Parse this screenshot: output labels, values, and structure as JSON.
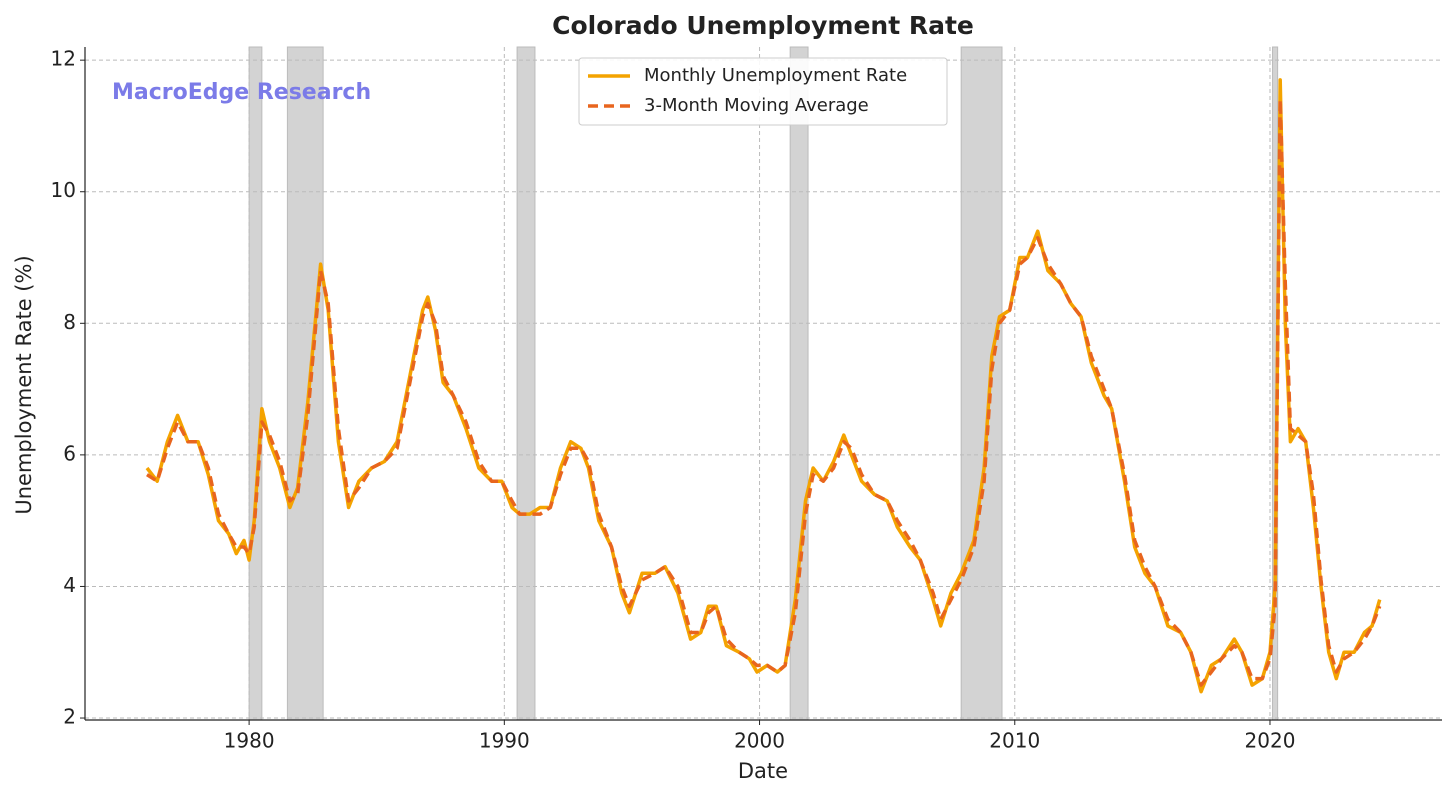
{
  "chart_data": {
    "type": "line",
    "title": "Colorado Unemployment Rate",
    "x_label": "Date",
    "y_label": "Unemployment Rate (%)",
    "annotation": "MacroEdge Research",
    "xlim": [
      1973.57,
      2026.74
    ],
    "ylim": [
      1.97,
      12.2
    ],
    "xticks": [
      1980,
      1990,
      2000,
      2010,
      2020
    ],
    "yticks": [
      2,
      4,
      6,
      8,
      10,
      12
    ],
    "grid": true,
    "legend": "upper center",
    "recessions": [
      [
        1980.0,
        1980.5
      ],
      [
        1981.5,
        1982.9
      ],
      [
        1990.5,
        1991.2
      ],
      [
        2001.2,
        2001.9
      ],
      [
        2007.9,
        2009.5
      ],
      [
        2020.1,
        2020.3
      ]
    ],
    "recession_color": "#d3d3d3",
    "x": [
      1976.0,
      1976.4,
      1976.8,
      1977.2,
      1977.6,
      1978.0,
      1978.4,
      1978.8,
      1979.2,
      1979.5,
      1979.8,
      1980.0,
      1980.2,
      1980.5,
      1980.8,
      1981.2,
      1981.6,
      1981.9,
      1982.3,
      1982.8,
      1983.1,
      1983.5,
      1983.9,
      1984.3,
      1984.8,
      1985.3,
      1985.8,
      1986.3,
      1986.8,
      1987.0,
      1987.3,
      1987.6,
      1988.0,
      1988.5,
      1989.0,
      1989.5,
      1989.9,
      1990.3,
      1990.6,
      1991.0,
      1991.4,
      1991.8,
      1992.2,
      1992.6,
      1993.0,
      1993.3,
      1993.7,
      1994.2,
      1994.6,
      1994.9,
      1995.4,
      1995.9,
      1996.3,
      1996.8,
      1997.3,
      1997.7,
      1998.0,
      1998.3,
      1998.7,
      1999.2,
      1999.6,
      1999.9,
      2000.3,
      2000.7,
      2001.0,
      2001.4,
      2001.8,
      2002.1,
      2002.5,
      2002.9,
      2003.3,
      2003.6,
      2004.0,
      2004.5,
      2005.0,
      2005.4,
      2005.9,
      2006.3,
      2006.8,
      2007.1,
      2007.5,
      2007.9,
      2008.4,
      2008.8,
      2009.1,
      2009.4,
      2009.8,
      2010.2,
      2010.5,
      2010.9,
      2011.3,
      2011.8,
      2012.2,
      2012.6,
      2013.0,
      2013.5,
      2013.8,
      2014.3,
      2014.7,
      2015.1,
      2015.5,
      2016.0,
      2016.5,
      2016.9,
      2017.3,
      2017.7,
      2018.1,
      2018.6,
      2018.9,
      2019.3,
      2019.7,
      2020.0,
      2020.2,
      2020.4,
      2020.6,
      2020.8,
      2021.1,
      2021.4,
      2021.7,
      2022.0,
      2022.3,
      2022.6,
      2022.9,
      2023.3,
      2023.7,
      2024.0,
      2024.3
    ],
    "series": [
      {
        "name": "Monthly Unemployment Rate",
        "color": "#f4a300",
        "dash": false,
        "values": [
          5.8,
          5.6,
          6.2,
          6.6,
          6.2,
          6.2,
          5.7,
          5.0,
          4.8,
          4.5,
          4.7,
          4.4,
          5.0,
          6.7,
          6.2,
          5.8,
          5.2,
          5.5,
          6.8,
          8.9,
          8.2,
          6.2,
          5.2,
          5.6,
          5.8,
          5.9,
          6.2,
          7.2,
          8.2,
          8.4,
          7.9,
          7.1,
          6.9,
          6.4,
          5.8,
          5.6,
          5.6,
          5.2,
          5.1,
          5.1,
          5.2,
          5.2,
          5.8,
          6.2,
          6.1,
          5.8,
          5.0,
          4.6,
          3.9,
          3.6,
          4.2,
          4.2,
          4.3,
          3.9,
          3.2,
          3.3,
          3.7,
          3.7,
          3.1,
          3.0,
          2.9,
          2.7,
          2.8,
          2.7,
          2.8,
          3.8,
          5.3,
          5.8,
          5.6,
          5.9,
          6.3,
          6.0,
          5.6,
          5.4,
          5.3,
          4.9,
          4.6,
          4.4,
          3.8,
          3.4,
          3.9,
          4.2,
          4.7,
          5.8,
          7.5,
          8.1,
          8.2,
          9.0,
          9.0,
          9.4,
          8.8,
          8.6,
          8.3,
          8.1,
          7.4,
          6.9,
          6.7,
          5.6,
          4.6,
          4.2,
          4.0,
          3.4,
          3.3,
          3.0,
          2.4,
          2.8,
          2.9,
          3.2,
          3.0,
          2.5,
          2.6,
          3.0,
          4.0,
          11.7,
          8.0,
          6.2,
          6.4,
          6.2,
          5.2,
          4.0,
          3.0,
          2.6,
          3.0,
          3.0,
          3.3,
          3.4,
          3.8
        ]
      },
      {
        "name": "3-Month Moving Average",
        "color": "#e8651e",
        "dash": true,
        "values": [
          5.7,
          5.6,
          6.1,
          6.5,
          6.2,
          6.2,
          5.8,
          5.1,
          4.8,
          4.6,
          4.6,
          4.5,
          4.9,
          6.5,
          6.3,
          5.9,
          5.3,
          5.4,
          6.6,
          8.8,
          8.3,
          6.4,
          5.3,
          5.5,
          5.8,
          5.9,
          6.1,
          7.1,
          8.1,
          8.3,
          8.0,
          7.2,
          6.9,
          6.5,
          5.9,
          5.6,
          5.6,
          5.3,
          5.1,
          5.1,
          5.1,
          5.2,
          5.7,
          6.1,
          6.1,
          5.9,
          5.1,
          4.6,
          4.0,
          3.7,
          4.1,
          4.2,
          4.3,
          4.0,
          3.3,
          3.3,
          3.6,
          3.7,
          3.2,
          3.0,
          2.9,
          2.8,
          2.8,
          2.7,
          2.8,
          3.6,
          5.1,
          5.7,
          5.6,
          5.8,
          6.2,
          6.1,
          5.7,
          5.4,
          5.3,
          5.0,
          4.7,
          4.4,
          3.9,
          3.5,
          3.8,
          4.1,
          4.6,
          5.6,
          7.3,
          8.0,
          8.2,
          8.9,
          9.0,
          9.3,
          8.9,
          8.6,
          8.3,
          8.1,
          7.5,
          7.0,
          6.7,
          5.7,
          4.7,
          4.3,
          4.0,
          3.5,
          3.3,
          3.0,
          2.5,
          2.7,
          2.9,
          3.1,
          3.0,
          2.6,
          2.6,
          2.9,
          3.7,
          11.4,
          8.6,
          6.4,
          6.3,
          6.2,
          5.4,
          4.1,
          3.1,
          2.7,
          2.9,
          3.0,
          3.2,
          3.4,
          3.7
        ]
      }
    ]
  }
}
